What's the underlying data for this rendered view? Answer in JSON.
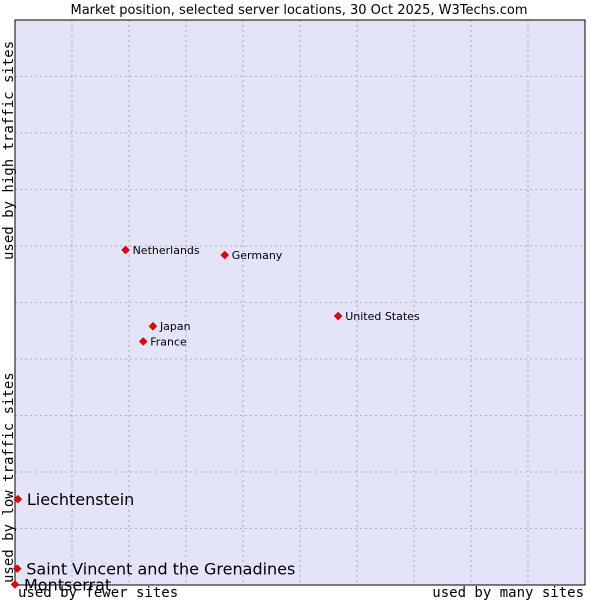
{
  "chart_data": {
    "type": "scatter",
    "title": "Market position, selected server locations, 30 Oct 2025, W3Techs.com",
    "xlabel_low": "used by fewer sites",
    "xlabel_high": "used by many sites",
    "ylabel_low": "used by low traffic sites",
    "ylabel_high": "used by high traffic sites",
    "xlim": [
      0,
      100
    ],
    "ylim": [
      0,
      100
    ],
    "grid": true,
    "background": "#e4e4f8",
    "grid_color": "#a0a0a0",
    "marker_color": "#ee0000",
    "points": [
      {
        "label": "Netherlands",
        "x": 19.4,
        "y": 59.3,
        "emphasis": false
      },
      {
        "label": "Germany",
        "x": 36.8,
        "y": 58.4,
        "emphasis": false
      },
      {
        "label": "United States",
        "x": 56.7,
        "y": 47.6,
        "emphasis": false
      },
      {
        "label": "Japan",
        "x": 24.2,
        "y": 45.8,
        "emphasis": false
      },
      {
        "label": "France",
        "x": 22.5,
        "y": 43.1,
        "emphasis": false
      },
      {
        "label": "Liechtenstein",
        "x": 0.5,
        "y": 15.2,
        "emphasis": true
      },
      {
        "label": "Saint Vincent and the Grenadines",
        "x": 0.4,
        "y": 2.9,
        "emphasis": true
      },
      {
        "label": "Montserrat",
        "x": 0.0,
        "y": 0.1,
        "emphasis": true
      }
    ]
  }
}
